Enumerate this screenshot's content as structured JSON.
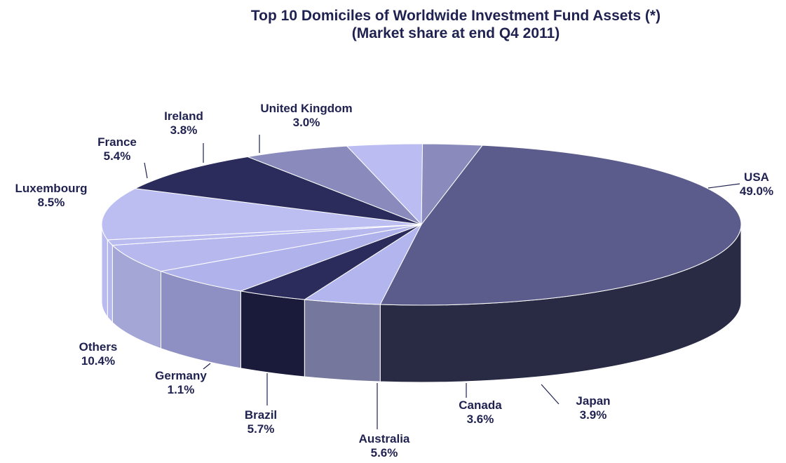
{
  "chart_data": {
    "type": "pie",
    "title": "Top 10 Domiciles of Worldwide  Investment  Fund  Assets (*)",
    "subtitle": "(Market  share at end Q4 2011)",
    "unit": "%",
    "slices": [
      {
        "name": "USA",
        "value": 49.0,
        "label": "49.0%",
        "top_color": "#5b5c8c",
        "side_color": "#292a44"
      },
      {
        "name": "Japan",
        "value": 3.9,
        "label": "3.9%",
        "top_color": "#b3b5ef",
        "side_color": "#76779d"
      },
      {
        "name": "Canada",
        "value": 3.6,
        "label": "3.6%",
        "top_color": "#2c2c5c",
        "side_color": "#1a1a3a"
      },
      {
        "name": "Australia",
        "value": 5.6,
        "label": "5.6%",
        "top_color": "#b0b2ec",
        "side_color": "#8e8fc2"
      },
      {
        "name": "Brazil",
        "value": 5.7,
        "label": "5.7%",
        "top_color": "#b7b9ee",
        "side_color": "#a4a6d6"
      },
      {
        "name": "Germany",
        "value": 1.1,
        "label": "1.1%",
        "top_color": "#babcf0",
        "side_color": "#b6b8ec"
      },
      {
        "name": "Others",
        "value": 10.4,
        "label": "10.4%",
        "top_color": "#bcbef2",
        "side_color": "#b9bbf0"
      },
      {
        "name": "Luxembourg",
        "value": 8.5,
        "label": "8.5%",
        "top_color": "#2c2c5c",
        "side_color": "#1f1f45"
      },
      {
        "name": "France",
        "value": 5.4,
        "label": "5.4%",
        "top_color": "#8a8bbc",
        "side_color": "#5e5f88"
      },
      {
        "name": "Ireland",
        "value": 3.8,
        "label": "3.8%",
        "top_color": "#babcf2",
        "side_color": "#9798c8"
      },
      {
        "name": "United Kingdom",
        "value": 3.0,
        "label": "3.0%",
        "top_color": "#8a8bbc",
        "side_color": "#5e5f88"
      }
    ]
  }
}
